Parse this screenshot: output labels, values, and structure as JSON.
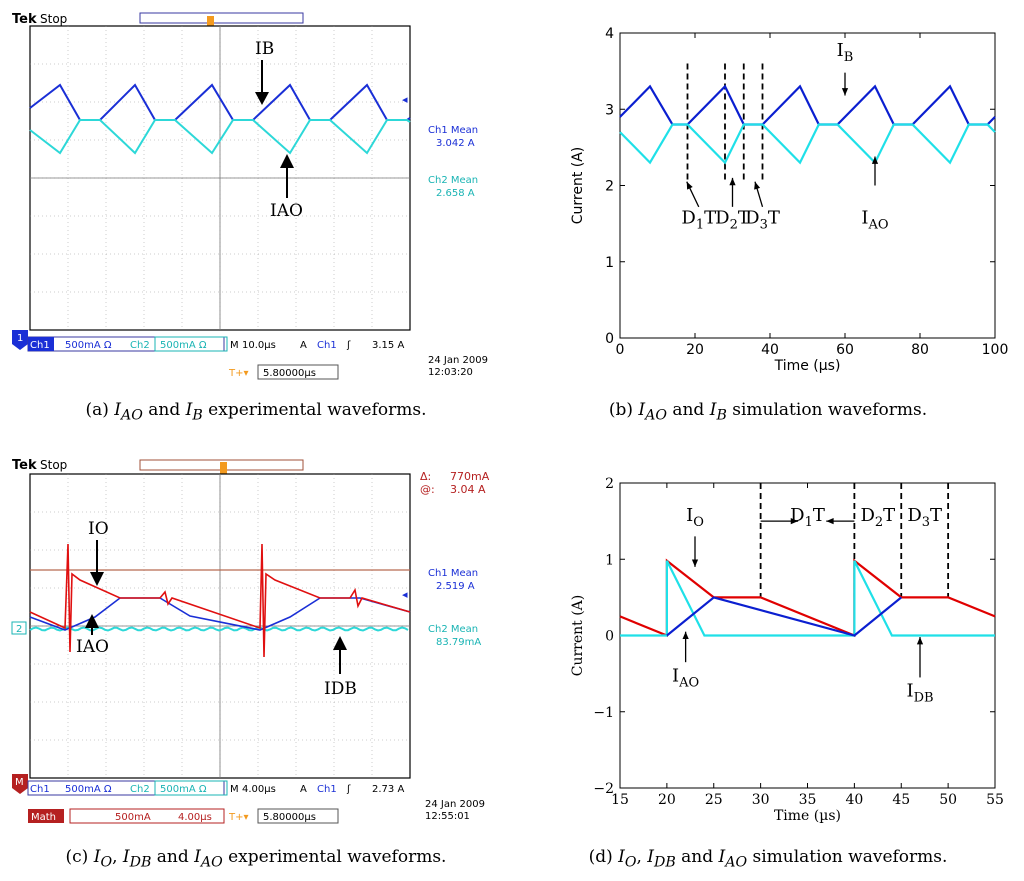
{
  "panel_a": {
    "brand": "Tek",
    "run_state": "Stop",
    "trigger_label": "T",
    "ch1_mean_label": "Ch1 Mean",
    "ch1_mean_value": "3.042 A",
    "ch2_mean_label": "Ch2 Mean",
    "ch2_mean_value": "2.658 A",
    "label_ib": "IB",
    "label_iao": "IAO",
    "ch1_marker": "1",
    "status": {
      "ch1": "Ch1",
      "ch1_scale": "500mA Ω",
      "ch2": "Ch2",
      "ch2_scale": "500mA Ω",
      "m": "M",
      "timebase": "10.0µs",
      "a": "A",
      "trig_ch": "Ch1",
      "trig_sym": "ʃ",
      "trig_level": "3.15 A",
      "date": "24 Jan  2009",
      "time": "12:03:20",
      "delay_icon": "T+▾",
      "delay": "5.80000µs"
    },
    "caption_prefix": "(a) ",
    "caption_m1": "I",
    "caption_s1": "AO",
    "caption_mid": " and ",
    "caption_m2": "I",
    "caption_s2": "B",
    "caption_suffix": " experimental waveforms."
  },
  "panel_c": {
    "brand": "Tek",
    "run_state": "Stop",
    "trigger_label": "T",
    "cursor_delta_label": "Δ:",
    "cursor_delta_value": "770mA",
    "cursor_at_label": "@:",
    "cursor_at_value": "3.04 A",
    "ch1_mean_label": "Ch1 Mean",
    "ch1_mean_value": "2.519 A",
    "ch2_mean_label": "Ch2 Mean",
    "ch2_mean_value": "83.79mA",
    "label_io": "IO",
    "label_iao": "IAO",
    "label_idb": "IDB",
    "ch2_marker": "2",
    "math_marker": "M",
    "status": {
      "ch1": "Ch1",
      "ch1_scale": "500mA Ω",
      "ch2": "Ch2",
      "ch2_scale": "500mA Ω",
      "m": "M",
      "timebase": "4.00µs",
      "a": "A",
      "trig_ch": "Ch1",
      "trig_sym": "ʃ",
      "trig_level": "2.73 A",
      "math": "Math",
      "math_scale": "500mA",
      "math_time": "4.00µs",
      "delay_icon": "T+▾",
      "delay": "5.80000µs",
      "date": "24 Jan  2009",
      "time": "12:55:01"
    },
    "caption_prefix": "(c) ",
    "caption_m1": "I",
    "caption_s1": "O",
    "caption_sep1": ", ",
    "caption_m2": "I",
    "caption_s2": "DB",
    "caption_mid": " and ",
    "caption_m3": "I",
    "caption_s3": "AO",
    "caption_suffix": " experimental waveforms."
  },
  "panel_b": {
    "caption_prefix": "(b) ",
    "caption_m1": "I",
    "caption_s1": "AO",
    "caption_mid": " and ",
    "caption_m2": "I",
    "caption_s2": "B",
    "caption_suffix": " simulation waveforms."
  },
  "panel_d": {
    "caption_prefix": "(d) ",
    "caption_m1": "I",
    "caption_s1": "O",
    "caption_sep1": ", ",
    "caption_m2": "I",
    "caption_s2": "DB",
    "caption_mid": " and ",
    "caption_m3": "I",
    "caption_s3": "AO",
    "caption_suffix": " simulation waveforms."
  },
  "colors": {
    "ch1": "#1a2fd6",
    "ch2": "#2dd8d8",
    "math": "#e01010",
    "scope_bg": "#ffffff",
    "grid": "#9a9a9a",
    "sim_dark": "#0b1fd0",
    "sim_cyan": "#1fe0e8",
    "sim_red": "#e00000"
  },
  "chart_data": [
    {
      "type": "line",
      "title": "",
      "xlabel": "Time (µs)",
      "ylabel": "Current (A)",
      "xlim": [
        0,
        100
      ],
      "ylim": [
        0,
        4
      ],
      "xticks": [
        "0",
        "20",
        "40",
        "60",
        "80",
        "100"
      ],
      "yticks": [
        "0",
        "1",
        "2",
        "3",
        "4"
      ],
      "series": [
        {
          "name": "IB",
          "x": [
            0,
            8,
            14,
            18,
            28,
            33,
            38,
            48,
            53,
            58,
            68,
            73,
            78,
            88,
            93,
            98,
            100
          ],
          "values": [
            2.9,
            3.3,
            2.8,
            2.8,
            3.3,
            2.8,
            2.8,
            3.3,
            2.8,
            2.8,
            3.3,
            2.8,
            2.8,
            3.3,
            2.8,
            2.8,
            2.9
          ]
        },
        {
          "name": "IAO",
          "x": [
            0,
            8,
            14,
            18,
            28,
            33,
            38,
            48,
            53,
            58,
            68,
            73,
            78,
            88,
            93,
            98,
            100
          ],
          "values": [
            2.7,
            2.3,
            2.8,
            2.8,
            2.3,
            2.8,
            2.8,
            2.3,
            2.8,
            2.8,
            2.3,
            2.8,
            2.8,
            2.3,
            2.8,
            2.8,
            2.7
          ]
        }
      ],
      "vlines_x": [
        18,
        28,
        33,
        38
      ],
      "annotations": [
        {
          "text": "I",
          "sub": "B",
          "x": 60,
          "y": 3.7
        },
        {
          "text": "D",
          "sub": "1",
          "post": "T",
          "x": 21,
          "y": 1.5
        },
        {
          "text": "D",
          "sub": "2",
          "post": "T",
          "x": 30,
          "y": 1.5
        },
        {
          "text": "D",
          "sub": "3",
          "post": "T",
          "x": 38,
          "y": 1.5
        },
        {
          "text": "I",
          "sub": "AO",
          "x": 68,
          "y": 1.5
        }
      ]
    },
    {
      "type": "line",
      "title": "",
      "xlabel": "Time (µs)",
      "ylabel": "Current (A)",
      "xlim": [
        15,
        55
      ],
      "ylim": [
        -2,
        2
      ],
      "xticks": [
        "15",
        "20",
        "25",
        "30",
        "35",
        "40",
        "45",
        "50",
        "55"
      ],
      "yticks": [
        "−2",
        "−1",
        "0",
        "1",
        "2"
      ],
      "series": [
        {
          "name": "IO",
          "x": [
            15,
            20,
            20,
            25,
            30,
            40,
            40,
            45,
            50,
            55
          ],
          "values": [
            0.25,
            0,
            0.98,
            0.5,
            0.5,
            0,
            0.98,
            0.5,
            0.5,
            0.25
          ]
        },
        {
          "name": "IDB",
          "x": [
            15,
            20,
            20,
            24,
            30,
            40,
            40,
            44,
            50,
            55
          ],
          "values": [
            0,
            0,
            0.98,
            0,
            0,
            0,
            0.98,
            0,
            0,
            0
          ]
        },
        {
          "name": "IAO",
          "x": [
            20,
            25,
            40,
            45
          ],
          "values": [
            0,
            0.5,
            0,
            0.5
          ]
        }
      ],
      "vlines_x": [
        30,
        40,
        45,
        50
      ],
      "annotations": [
        {
          "text": "D",
          "sub": "1",
          "post": "T",
          "x": 35,
          "y": 1.5
        },
        {
          "text": "D",
          "sub": "2",
          "post": "T",
          "x": 42.5,
          "y": 1.5
        },
        {
          "text": "D",
          "sub": "3",
          "post": "T",
          "x": 47.5,
          "y": 1.5
        },
        {
          "text": "I",
          "sub": "O",
          "x": 23,
          "y": 1.5
        },
        {
          "text": "I",
          "sub": "AO",
          "x": 22,
          "y": -0.6
        },
        {
          "text": "I",
          "sub": "DB",
          "x": 47,
          "y": -0.8
        }
      ]
    }
  ]
}
